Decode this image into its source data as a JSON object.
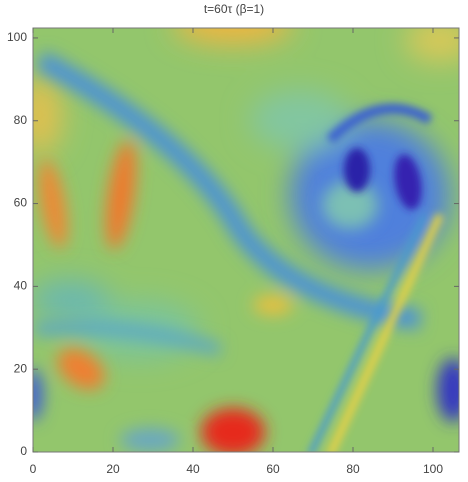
{
  "chart_data": {
    "type": "density",
    "title": "t=60τ (β=1)",
    "xlim": [
      0,
      106.5
    ],
    "ylim": [
      0,
      102.4
    ],
    "xticks": [
      0,
      20,
      40,
      60,
      80,
      100
    ],
    "yticks": [
      0,
      20,
      40,
      60,
      80,
      100
    ]
  }
}
